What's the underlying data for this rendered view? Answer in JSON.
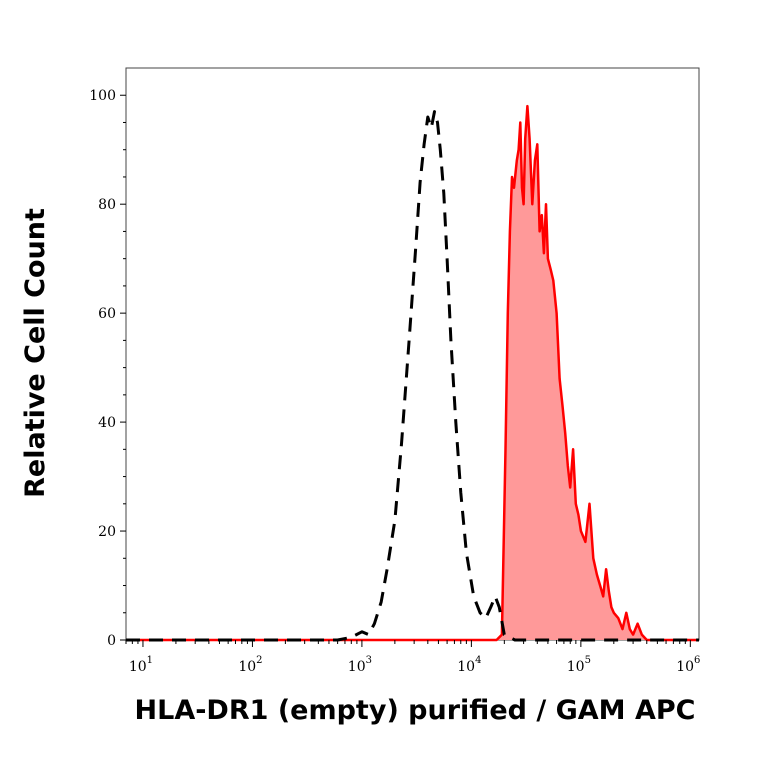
{
  "chart_data": {
    "type": "area",
    "xlabel": "HLA-DR1 (empty) purified / GAM APC",
    "ylabel": "Relative Cell Count",
    "x_scale": "log",
    "xlim": [
      7,
      1200000
    ],
    "ylim": [
      0,
      105
    ],
    "x_ticks": [
      {
        "base": "10",
        "exp": "1",
        "value": 10
      },
      {
        "base": "10",
        "exp": "2",
        "value": 100
      },
      {
        "base": "10",
        "exp": "3",
        "value": 1000
      },
      {
        "base": "10",
        "exp": "4",
        "value": 10000
      },
      {
        "base": "10",
        "exp": "5",
        "value": 100000
      },
      {
        "base": "10",
        "exp": "6",
        "value": 1000000
      }
    ],
    "y_ticks": [
      {
        "label": "0",
        "value": 0
      },
      {
        "label": "20",
        "value": 20
      },
      {
        "label": "40",
        "value": 40
      },
      {
        "label": "60",
        "value": 60
      },
      {
        "label": "80",
        "value": 80
      },
      {
        "label": "100",
        "value": 100
      }
    ],
    "grid": false,
    "legend": "none",
    "series": [
      {
        "style": "dashed",
        "color": "#000000",
        "filled": false,
        "x": [
          7,
          600,
          800,
          1000,
          1150,
          1300,
          1500,
          1700,
          2000,
          2300,
          2700,
          3100,
          3400,
          3700,
          4000,
          4300,
          4600,
          4900,
          5200,
          5600,
          6000,
          6500,
          7200,
          8000,
          9000,
          10500,
          12000,
          13500,
          15000,
          16500,
          18000,
          20000,
          25000,
          1200000
        ],
        "y": [
          0,
          0,
          0.5,
          1.5,
          1,
          3,
          7,
          13,
          22,
          36,
          55,
          72,
          84,
          91,
          96,
          94,
          97,
          95,
          90,
          82,
          70,
          55,
          40,
          27,
          16,
          8,
          5,
          4,
          6,
          8,
          6,
          1,
          0,
          0
        ]
      },
      {
        "style": "solid",
        "color": "#ff0000",
        "fill": "#ff9999",
        "filled": true,
        "x": [
          7,
          17000,
          19000,
          20500,
          21500,
          22500,
          23500,
          24500,
          26000,
          27000,
          28000,
          29000,
          30000,
          31000,
          32500,
          34000,
          36000,
          38000,
          40000,
          42000,
          44000,
          46000,
          48000,
          50000,
          53000,
          56000,
          60000,
          64000,
          68000,
          72000,
          76000,
          80000,
          85000,
          90000,
          95000,
          100000,
          110000,
          120000,
          130000,
          140000,
          150000,
          160000,
          170000,
          180000,
          190000,
          200000,
          220000,
          240000,
          260000,
          280000,
          300000,
          330000,
          360000,
          400000,
          1200000
        ],
        "y": [
          0,
          0,
          1,
          35,
          60,
          75,
          85,
          83,
          88,
          90,
          95,
          83,
          80,
          92,
          98,
          92,
          80,
          88,
          91,
          75,
          78,
          71,
          80,
          70,
          68,
          66,
          60,
          48,
          43,
          38,
          32,
          28,
          35,
          25,
          23,
          20,
          18,
          25,
          15,
          12,
          10,
          8,
          13,
          9,
          6,
          5,
          4,
          2,
          5,
          2,
          1,
          3,
          1,
          0,
          0
        ]
      }
    ]
  }
}
